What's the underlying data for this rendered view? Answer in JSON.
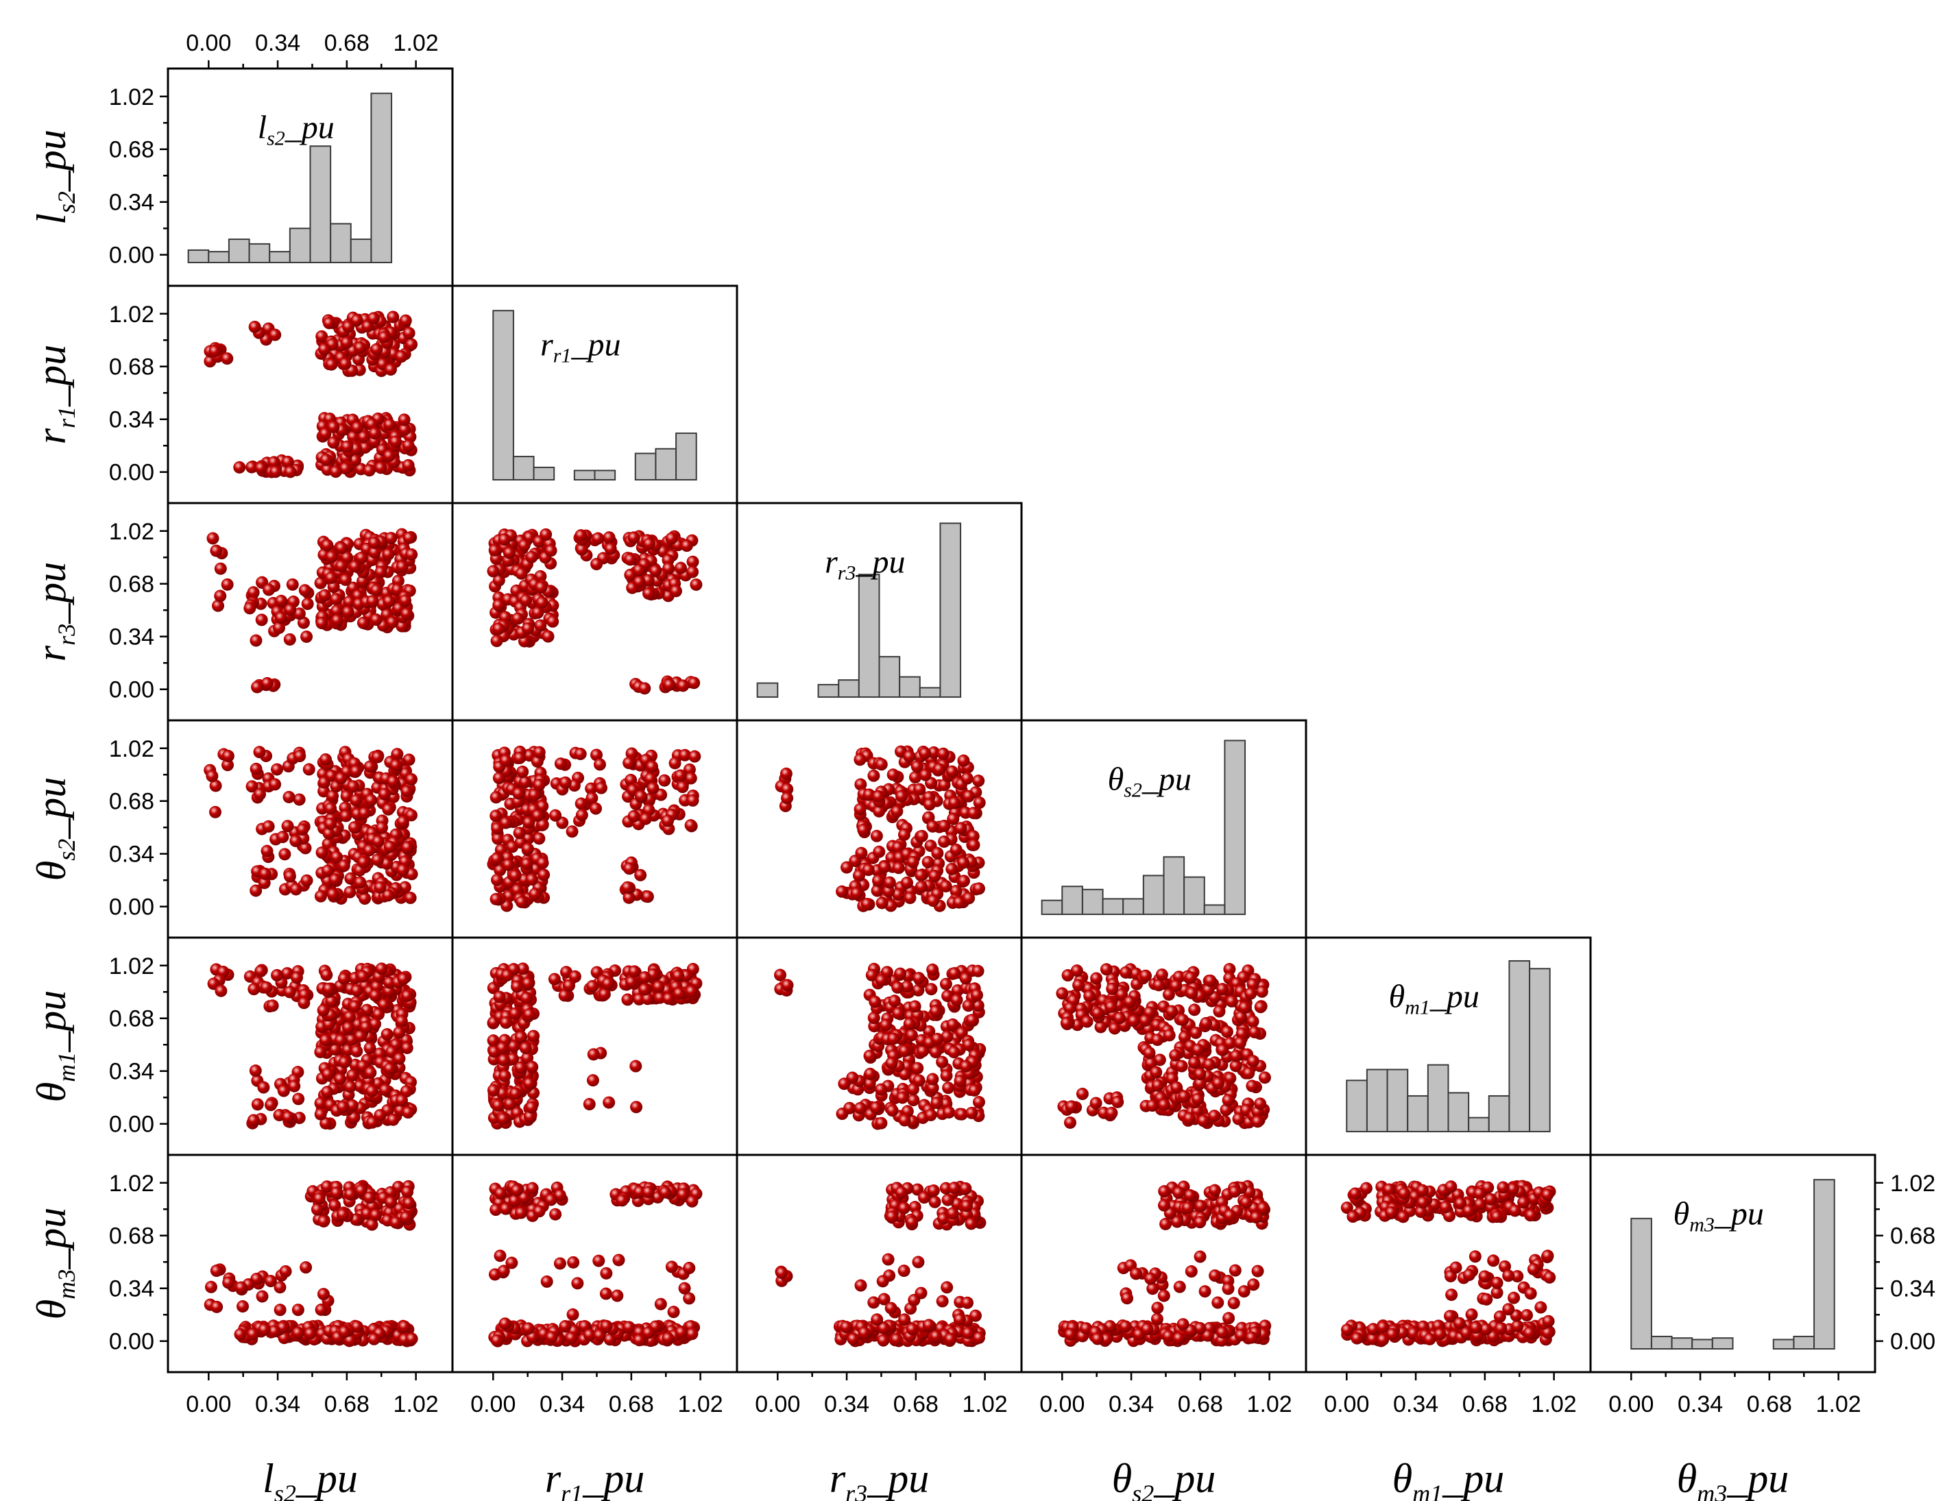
{
  "colors": {
    "point": "#c00000",
    "point_highlight": "#ffc8c8",
    "bar_fill": "#c0c0c0",
    "bar_stroke": "#3a3a3a",
    "frame": "#000000"
  },
  "chart_data": {
    "type": "scatter_matrix",
    "variables": [
      {
        "key": "ls2",
        "base": "l",
        "sub": "s2",
        "suffix": "_pu",
        "label": "ls2_pu"
      },
      {
        "key": "rr1",
        "base": "r",
        "sub": "r1",
        "suffix": "_pu",
        "label": "rr1_pu"
      },
      {
        "key": "rr3",
        "base": "r",
        "sub": "r3",
        "suffix": "_pu",
        "label": "rr3_pu"
      },
      {
        "key": "ths2",
        "base": "θ",
        "sub": "s2",
        "suffix": "_pu",
        "label": "θs2_pu"
      },
      {
        "key": "thm1",
        "base": "θ",
        "sub": "m1",
        "suffix": "_pu",
        "label": "θm1_pu"
      },
      {
        "key": "thm3",
        "base": "θ",
        "sub": "m3",
        "suffix": "_pu",
        "label": "θm3_pu"
      }
    ],
    "axis_ticks": [
      0.0,
      0.34,
      0.68,
      1.02
    ],
    "tick_labels": [
      "0.00",
      "0.34",
      "0.68",
      "1.02"
    ],
    "axis_range": [
      -0.2,
      1.2
    ],
    "bin_edges": [
      0,
      0.1,
      0.2,
      0.3,
      0.4,
      0.5,
      0.6,
      0.7,
      0.8,
      0.9,
      1.0
    ],
    "histograms": [
      {
        "var": "ls2",
        "values": [
          0.03,
          0.02,
          0.1,
          0.07,
          0.02,
          0.17,
          0.7,
          0.2,
          0.1,
          1.04
        ],
        "bin_start": -0.1
      },
      {
        "var": "rr1",
        "values": [
          1.04,
          0.1,
          0.03,
          0.0,
          0.01,
          0.01,
          0.0,
          0.12,
          0.15,
          0.25
        ],
        "bin_start": 0.0
      },
      {
        "var": "rr3",
        "values": [
          0.04,
          0.0,
          0.0,
          0.03,
          0.06,
          0.74,
          0.21,
          0.08,
          0.01,
          1.07
        ],
        "bin_start": -0.1
      },
      {
        "var": "ths2",
        "values": [
          0.04,
          0.13,
          0.11,
          0.05,
          0.05,
          0.2,
          0.32,
          0.19,
          0.01,
          1.07
        ],
        "bin_start": -0.1
      },
      {
        "var": "thm1",
        "values": [
          0.28,
          0.35,
          0.35,
          0.18,
          0.38,
          0.2,
          0.04,
          0.18,
          1.05,
          1.0
        ],
        "bin_start": 0.0
      },
      {
        "var": "thm3",
        "values": [
          0.79,
          0.03,
          0.02,
          0.01,
          0.02,
          0.0,
          0.0,
          0.01,
          0.03,
          1.04
        ],
        "bin_start": 0.0
      }
    ],
    "scatter_regions": [
      {
        "x": "ls2",
        "y": "rr1",
        "clusters": [
          [
            0.55,
            1.0,
            0.65,
            1.0,
            180
          ],
          [
            0.55,
            1.0,
            0.0,
            0.35,
            200
          ],
          [
            0.15,
            0.45,
            0.0,
            0.08,
            40
          ],
          [
            0.0,
            0.1,
            0.7,
            0.8,
            14
          ],
          [
            0.2,
            0.35,
            0.85,
            1.0,
            10
          ]
        ]
      },
      {
        "x": "ls2",
        "y": "rr3",
        "clusters": [
          [
            0.55,
            1.0,
            0.4,
            1.0,
            320
          ],
          [
            0.2,
            0.5,
            0.3,
            0.7,
            60
          ],
          [
            0.0,
            0.1,
            0.5,
            1.0,
            12
          ],
          [
            0.2,
            0.35,
            0.0,
            0.05,
            10
          ]
        ]
      },
      {
        "x": "ls2",
        "y": "ths2",
        "clusters": [
          [
            0.55,
            1.0,
            0.05,
            1.0,
            420
          ],
          [
            0.2,
            0.5,
            0.1,
            1.0,
            80
          ],
          [
            0.0,
            0.1,
            0.6,
            1.0,
            12
          ]
        ]
      },
      {
        "x": "ls2",
        "y": "thm1",
        "clusters": [
          [
            0.55,
            1.0,
            0.0,
            1.0,
            480
          ],
          [
            0.2,
            0.5,
            0.75,
            1.0,
            40
          ],
          [
            0.2,
            0.45,
            0.0,
            0.35,
            40
          ],
          [
            0.0,
            0.1,
            0.85,
            1.0,
            10
          ]
        ]
      },
      {
        "x": "ls2",
        "y": "thm3",
        "clusters": [
          [
            0.5,
            1.0,
            0.75,
            1.0,
            160
          ],
          [
            0.15,
            1.0,
            0.0,
            0.1,
            260
          ],
          [
            0.0,
            0.6,
            0.2,
            0.55,
            45
          ]
        ]
      },
      {
        "x": "rr1",
        "y": "rr3",
        "clusters": [
          [
            0.0,
            0.3,
            0.3,
            1.0,
            200
          ],
          [
            0.4,
            0.6,
            0.8,
            1.0,
            30
          ],
          [
            0.65,
            1.0,
            0.6,
            1.0,
            120
          ],
          [
            0.7,
            1.0,
            0.0,
            0.05,
            20
          ]
        ]
      },
      {
        "x": "rr1",
        "y": "ths2",
        "clusters": [
          [
            0.0,
            0.25,
            0.0,
            1.0,
            260
          ],
          [
            0.3,
            0.55,
            0.4,
            1.0,
            40
          ],
          [
            0.65,
            1.0,
            0.5,
            1.0,
            110
          ],
          [
            0.65,
            0.8,
            0.0,
            0.3,
            20
          ]
        ]
      },
      {
        "x": "rr1",
        "y": "thm1",
        "clusters": [
          [
            0.0,
            0.2,
            0.0,
            1.0,
            270
          ],
          [
            0.3,
            0.6,
            0.8,
            1.0,
            45
          ],
          [
            0.65,
            1.0,
            0.8,
            1.0,
            130
          ],
          [
            0.4,
            0.9,
            0.1,
            0.5,
            12
          ]
        ]
      },
      {
        "x": "rr1",
        "y": "thm3",
        "clusters": [
          [
            0.0,
            0.35,
            0.8,
            1.0,
            70
          ],
          [
            0.6,
            1.0,
            0.9,
            1.0,
            80
          ],
          [
            0.0,
            1.0,
            0.0,
            0.1,
            250
          ],
          [
            0.0,
            1.0,
            0.1,
            0.55,
            40
          ]
        ]
      },
      {
        "x": "rr3",
        "y": "ths2",
        "clusters": [
          [
            0.4,
            1.0,
            0.0,
            1.0,
            380
          ],
          [
            0.0,
            0.05,
            0.6,
            1.0,
            10
          ],
          [
            0.3,
            0.45,
            0.0,
            0.3,
            18
          ]
        ]
      },
      {
        "x": "rr3",
        "y": "thm1",
        "clusters": [
          [
            0.45,
            1.0,
            0.0,
            1.0,
            380
          ],
          [
            0.3,
            0.5,
            0.0,
            0.3,
            20
          ],
          [
            0.0,
            0.05,
            0.85,
            1.0,
            8
          ]
        ]
      },
      {
        "x": "rr3",
        "y": "thm3",
        "clusters": [
          [
            0.55,
            1.0,
            0.75,
            1.0,
            100
          ],
          [
            0.3,
            1.0,
            0.0,
            0.1,
            220
          ],
          [
            0.4,
            1.0,
            0.1,
            0.55,
            40
          ],
          [
            0.0,
            0.05,
            0.35,
            0.5,
            8
          ]
        ]
      },
      {
        "x": "ths2",
        "y": "thm1",
        "clusters": [
          [
            0.0,
            1.0,
            0.6,
            1.0,
            300
          ],
          [
            0.4,
            1.0,
            0.0,
            0.6,
            280
          ],
          [
            0.0,
            0.3,
            0.0,
            0.2,
            25
          ]
        ]
      },
      {
        "x": "ths2",
        "y": "thm3",
        "clusters": [
          [
            0.5,
            1.0,
            0.75,
            1.0,
            140
          ],
          [
            0.0,
            1.0,
            0.0,
            0.1,
            250
          ],
          [
            0.3,
            1.0,
            0.1,
            0.55,
            50
          ]
        ]
      },
      {
        "x": "thm1",
        "y": "thm3",
        "clusters": [
          [
            0.0,
            1.0,
            0.8,
            1.0,
            250
          ],
          [
            0.0,
            1.0,
            0.0,
            0.1,
            250
          ],
          [
            0.5,
            1.0,
            0.1,
            0.55,
            70
          ]
        ]
      }
    ]
  }
}
